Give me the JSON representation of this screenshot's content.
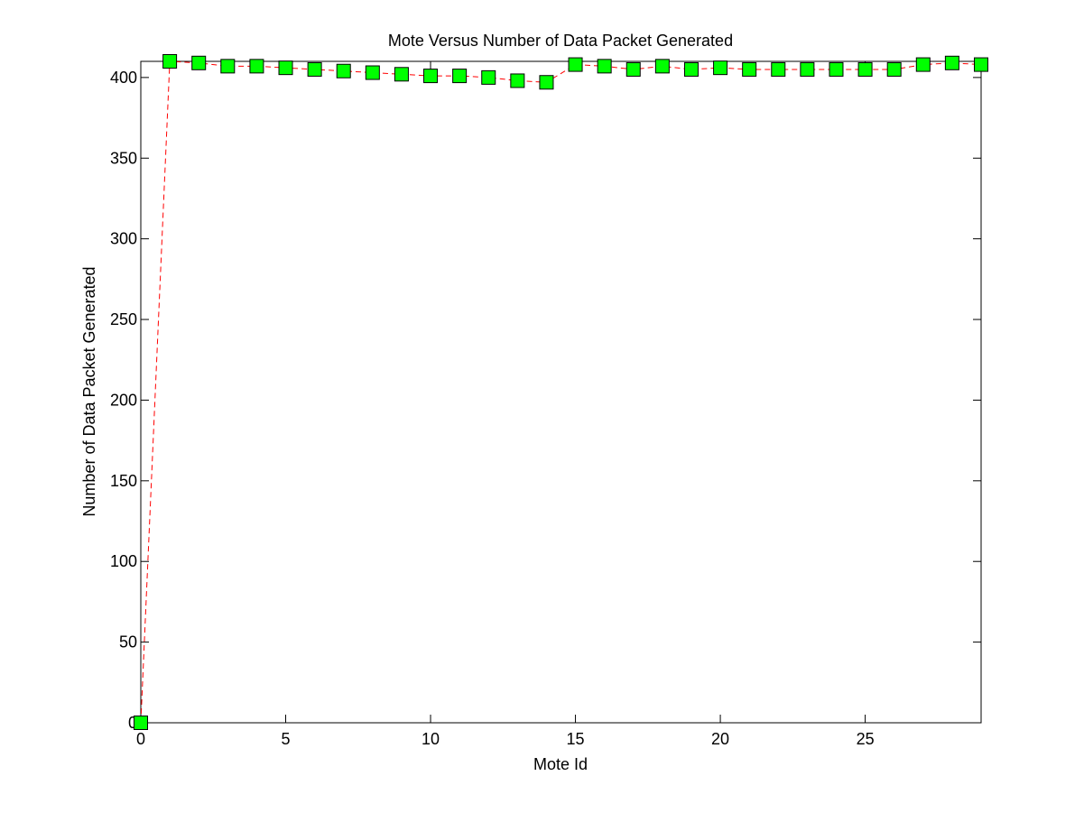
{
  "chart_data": {
    "type": "line",
    "title": "Mote Versus Number of Data Packet Generated",
    "x_label": "Mote Id",
    "y_label": "Number of Data Packet Generated",
    "x": [
      0,
      1,
      2,
      3,
      4,
      5,
      6,
      7,
      8,
      9,
      10,
      11,
      12,
      13,
      14,
      15,
      16,
      17,
      18,
      19,
      20,
      21,
      22,
      23,
      24,
      25,
      26,
      27,
      28,
      29
    ],
    "series": [
      {
        "color": "#ff0000",
        "marker_color": "#00ff00",
        "values": [
          0,
          410,
          409,
          407,
          407,
          406,
          405,
          404,
          403,
          402,
          401,
          401,
          400,
          398,
          397,
          408,
          407,
          405,
          407,
          405,
          406,
          405,
          405,
          405,
          405,
          405,
          405,
          408,
          409,
          408
        ]
      }
    ],
    "xlim": [
      0,
      29
    ],
    "xticks": [
      0,
      5,
      10,
      15,
      20,
      25
    ],
    "ylim": [
      0,
      410
    ],
    "yticks": [
      0,
      50,
      100,
      150,
      200,
      250,
      300,
      350,
      400
    ],
    "grid": false
  }
}
